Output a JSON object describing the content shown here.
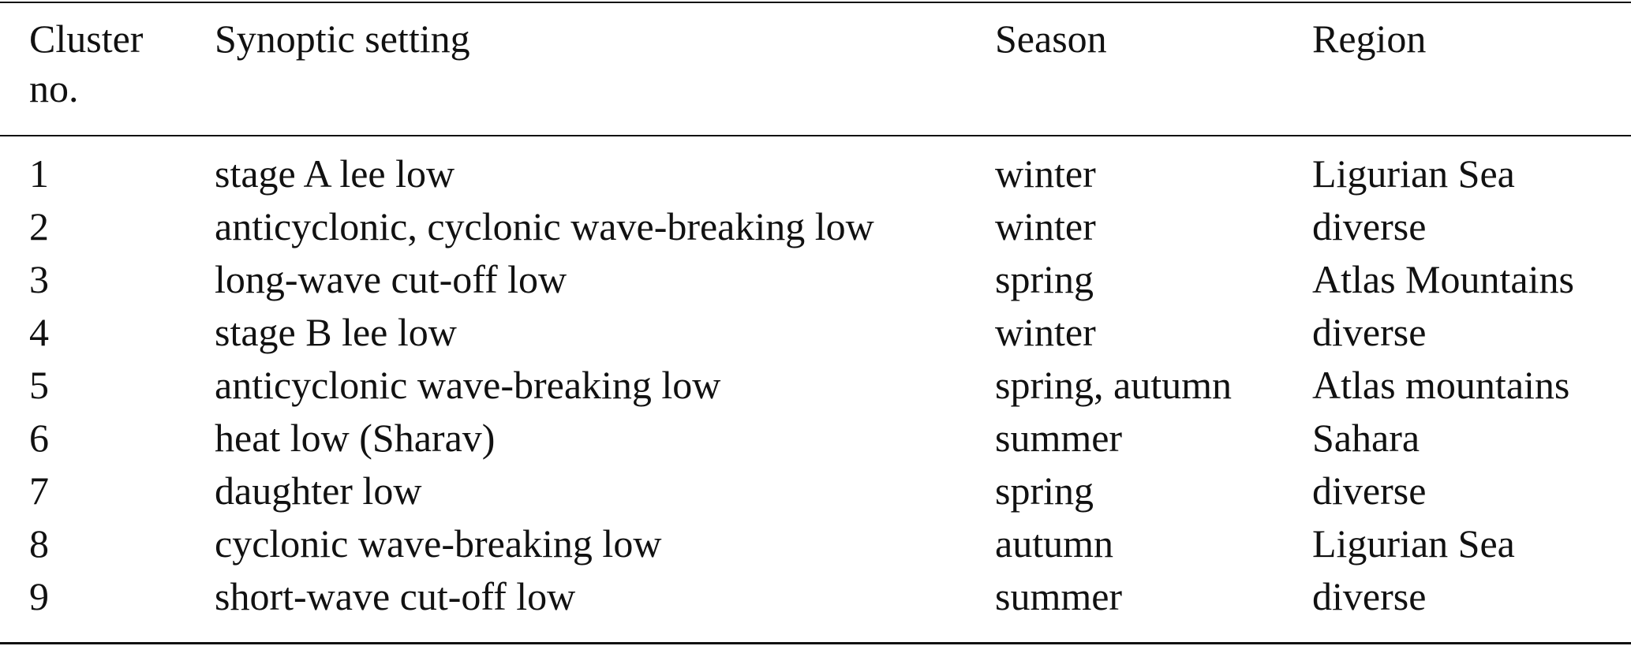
{
  "table": {
    "header": [
      "Cluster no.",
      "Synoptic setting",
      "Season",
      "Region"
    ],
    "rows": [
      [
        "1",
        "stage A lee low",
        "winter",
        "Ligurian Sea"
      ],
      [
        "2",
        "anticyclonic, cyclonic wave-breaking low",
        "winter",
        "diverse"
      ],
      [
        "3",
        "long-wave cut-off low",
        "spring",
        "Atlas Mountains"
      ],
      [
        "4",
        "stage B lee low",
        "winter",
        "diverse"
      ],
      [
        "5",
        "anticyclonic wave-breaking low",
        "spring, autumn",
        "Atlas mountains"
      ],
      [
        "6",
        "heat low (Sharav)",
        "summer",
        "Sahara"
      ],
      [
        "7",
        "daughter low",
        "spring",
        "diverse"
      ],
      [
        "8",
        "cyclonic wave-breaking low",
        "autumn",
        "Ligurian Sea"
      ],
      [
        "9",
        "short-wave cut-off low",
        "summer",
        "diverse"
      ]
    ]
  }
}
